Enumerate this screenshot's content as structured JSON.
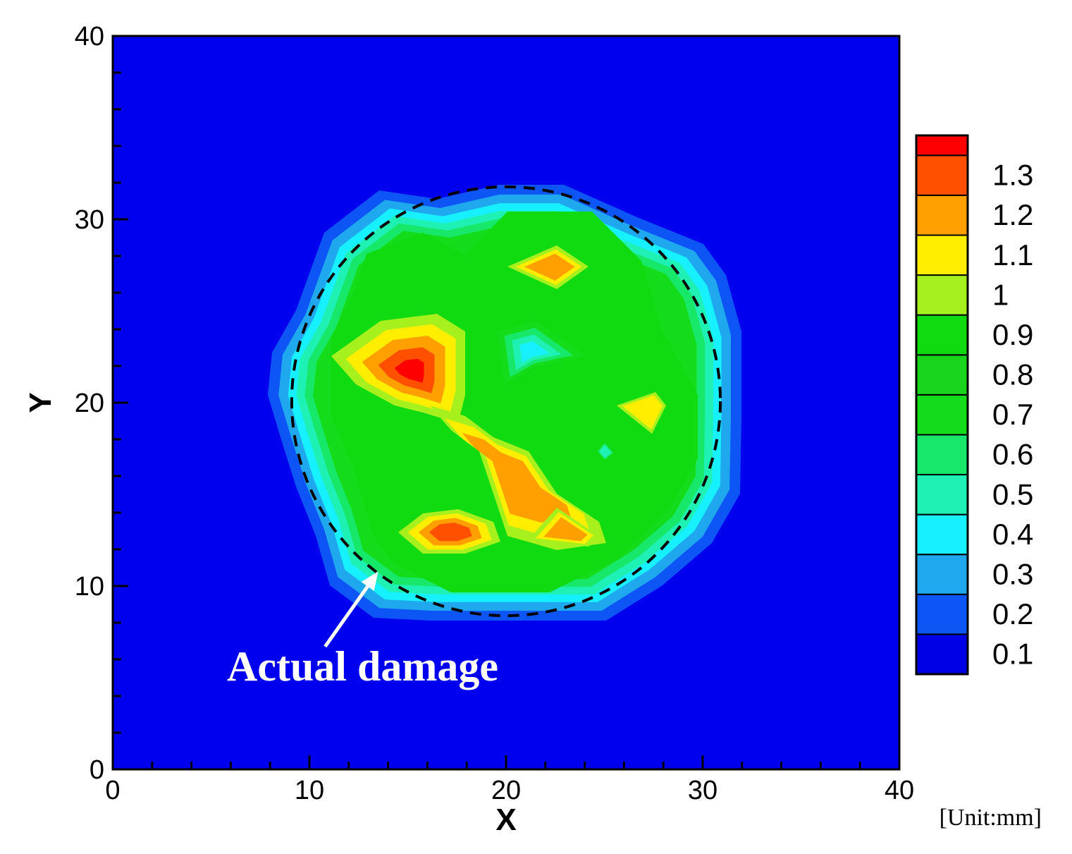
{
  "chart_data": {
    "type": "contour",
    "title": "",
    "xlabel": "X",
    "ylabel": "Y",
    "unit_note": "[Unit:mm]",
    "xlim": [
      0,
      40
    ],
    "ylim": [
      0,
      40
    ],
    "x_ticks": [
      "0",
      "10",
      "20",
      "30",
      "40"
    ],
    "y_ticks": [
      "0",
      "10",
      "20",
      "30",
      "40"
    ],
    "grid": false,
    "legend_position": "right",
    "colorbar": {
      "levels": [
        "0.1",
        "0.2",
        "0.3",
        "0.4",
        "0.5",
        "0.6",
        "0.7",
        "0.8",
        "0.9",
        "1",
        "1.1",
        "1.2",
        "1.3"
      ],
      "colors": [
        "#0000e6",
        "#0d55f5",
        "#1fa8ee",
        "#17f0ff",
        "#1ff0b4",
        "#17e86a",
        "#14dc1a",
        "#18d41c",
        "#10da10",
        "#a6f01e",
        "#ffee00",
        "#ffa000",
        "#ff5000",
        "#ff0000"
      ]
    },
    "background_color": "#0000ee",
    "peaks": [
      {
        "x": 15.2,
        "y": 22.2,
        "value": 1.3
      },
      {
        "x": 22.3,
        "y": 27.3,
        "value": 1.15
      },
      {
        "x": 17.5,
        "y": 12.6,
        "value": 1.25
      },
      {
        "x": 22.6,
        "y": 12.5,
        "value": 1.25
      },
      {
        "x": 27.5,
        "y": 19.8,
        "value": 1.05
      },
      {
        "x": 20.3,
        "y": 22.6,
        "value": 0.3
      },
      {
        "x": 25.2,
        "y": 17.3,
        "value": 0.45
      }
    ],
    "reference_circle": {
      "center": [
        20,
        20
      ],
      "radius": 10.9,
      "style": "dashed",
      "color": "#000000"
    },
    "annotation": {
      "text": "Actual damage",
      "arrow_from": [
        10.8,
        6.7
      ],
      "arrow_to": [
        13.5,
        10.8
      ],
      "color": "#ffffff"
    }
  }
}
